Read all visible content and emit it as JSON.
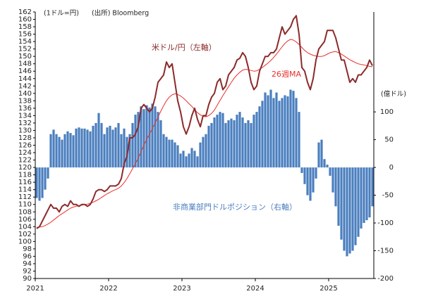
{
  "chart_data": {
    "type": "combo",
    "unit_left": "(1ドル=円)",
    "source": "(出所) Bloomberg",
    "unit_right": "(億ドル)",
    "categories": [
      "2021",
      null,
      null,
      null,
      null,
      null,
      null,
      null,
      null,
      null,
      null,
      null,
      null,
      null,
      null,
      null,
      null,
      null,
      null,
      null,
      null,
      null,
      null,
      null,
      null,
      null,
      "2022",
      null,
      null,
      null,
      null,
      null,
      null,
      null,
      null,
      null,
      null,
      null,
      null,
      null,
      null,
      null,
      null,
      null,
      null,
      null,
      null,
      null,
      null,
      null,
      null,
      null,
      "2023",
      null,
      null,
      null,
      null,
      null,
      null,
      null,
      null,
      null,
      null,
      null,
      null,
      null,
      null,
      null,
      null,
      null,
      null,
      null,
      null,
      null,
      null,
      null,
      null,
      null,
      "2024",
      null,
      null,
      null,
      null,
      null,
      null,
      null,
      null,
      null,
      null,
      null,
      null,
      null,
      null,
      null,
      null,
      null,
      null,
      null,
      null,
      null,
      null,
      null,
      null,
      null,
      "2025",
      null,
      null,
      null,
      null,
      null,
      null,
      null,
      null,
      null,
      null,
      null,
      null,
      null,
      null,
      null
    ],
    "ylim": [
      90,
      162
    ],
    "yticks": [
      90,
      92,
      94,
      96,
      98,
      100,
      102,
      104,
      106,
      108,
      110,
      112,
      114,
      116,
      118,
      120,
      122,
      124,
      126,
      128,
      130,
      132,
      134,
      136,
      138,
      140,
      142,
      144,
      146,
      148,
      150,
      152,
      154,
      156,
      158,
      160,
      162
    ],
    "y2lim": [
      -200,
      280
    ],
    "y2ticks": [
      -200,
      -150,
      -100,
      -50,
      0,
      50,
      100
    ],
    "series": [
      {
        "name": "非商業部門ドルポジション（右軸）",
        "type": "bar",
        "axis": "y2",
        "color": "#4a7ebf",
        "values": [
          -55,
          -60,
          -55,
          -40,
          -20,
          60,
          68,
          60,
          55,
          50,
          60,
          65,
          62,
          58,
          70,
          72,
          70,
          70,
          68,
          65,
          75,
          80,
          98,
          80,
          60,
          72,
          75,
          68,
          72,
          80,
          60,
          70,
          55,
          60,
          80,
          95,
          100,
          110,
          105,
          112,
          108,
          115,
          110,
          100,
          85,
          60,
          55,
          50,
          50,
          45,
          40,
          25,
          30,
          20,
          25,
          35,
          30,
          20,
          45,
          55,
          60,
          75,
          80,
          90,
          95,
          100,
          98,
          80,
          85,
          88,
          85,
          95,
          100,
          90,
          80,
          85,
          80,
          95,
          100,
          110,
          120,
          135,
          130,
          140,
          125,
          135,
          120,
          125,
          130,
          128,
          140,
          138,
          125,
          100,
          -10,
          -30,
          -50,
          -60,
          -45,
          -20,
          45,
          50,
          15,
          5,
          -15,
          -45,
          -70,
          -105,
          -130,
          -150,
          -160,
          -155,
          -150,
          -140,
          -125,
          -110,
          -100,
          -95,
          -90,
          -70
        ]
      },
      {
        "name": "26週MA",
        "type": "line",
        "axis": "y",
        "color": "#e8302c",
        "values": [
          103.8,
          103.9,
          104,
          104.3,
          104.7,
          105.2,
          105.8,
          106.4,
          107,
          107.5,
          108,
          108.5,
          109,
          109.3,
          109.5,
          109.7,
          109.8,
          110,
          110.1,
          110.3,
          110.6,
          111,
          111.4,
          111.9,
          112.4,
          112.9,
          113.3,
          113.7,
          114,
          114.4,
          115,
          115.9,
          117,
          118.3,
          119.7,
          121,
          122.5,
          124.3,
          126,
          127.6,
          129,
          130.5,
          132,
          133.6,
          135.2,
          136.7,
          138,
          139,
          139.6,
          139.9,
          139.7,
          139.3,
          138.7,
          138,
          137.2,
          136.5,
          135.6,
          134.8,
          134.2,
          133.8,
          133.7,
          134,
          134.6,
          135.5,
          136.8,
          138.1,
          139.4,
          140.6,
          141.8,
          143,
          144.1,
          145,
          145.7,
          146.3,
          146.5,
          146.4,
          146.2,
          146,
          146.1,
          146.5,
          147,
          147.6,
          148.2,
          148.9,
          149.7,
          150.6,
          151.6,
          152.6,
          153.5,
          154.2,
          154.6,
          154.4,
          153.9,
          153.2,
          152.4,
          151.6,
          151,
          150.6,
          150.3,
          150.1,
          150,
          150,
          150.2,
          150.6,
          151,
          151.2,
          151.3,
          151,
          150.6,
          150.1,
          149.6,
          149.1,
          148.7,
          148.3,
          148,
          147.8,
          147.7,
          147.5,
          147.3,
          147.2
        ]
      },
      {
        "name": "米ドル/円（左軸）",
        "type": "line",
        "axis": "y",
        "color": "#8b2a2a",
        "values": [
          103.5,
          104,
          105.5,
          107,
          108.5,
          110,
          109,
          109,
          108,
          109.5,
          110,
          109.5,
          111,
          110,
          110,
          109.5,
          110,
          110,
          109.5,
          110,
          111.5,
          113.5,
          114,
          114,
          113.5,
          114,
          115,
          115,
          115,
          115.5,
          117,
          121,
          123,
          128,
          128,
          129,
          131,
          136,
          137,
          136,
          135,
          136,
          139,
          143,
          144,
          145,
          148.5,
          147,
          148,
          143,
          138,
          135,
          131,
          129,
          131,
          134,
          136,
          133,
          131,
          134,
          134,
          137,
          139,
          140,
          143,
          144,
          141,
          142,
          145,
          146,
          147,
          149,
          149.5,
          151,
          150,
          147,
          143,
          141,
          142,
          146,
          148,
          150,
          150,
          151,
          151,
          152,
          155,
          158,
          156,
          157,
          158,
          160,
          161,
          156,
          147,
          146,
          143,
          141,
          144,
          149,
          152,
          153,
          154,
          157,
          157,
          157,
          155,
          152,
          149,
          149,
          146,
          143,
          144,
          143,
          145,
          145,
          146,
          147,
          149,
          147.5
        ]
      }
    ]
  }
}
